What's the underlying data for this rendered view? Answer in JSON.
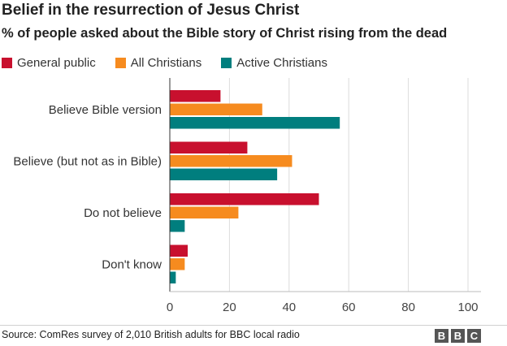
{
  "title": "Belief in the resurrection of Jesus Christ",
  "subtitle": "% of people asked about the Bible story of Christ rising from the dead",
  "source": "Source: ComRes survey of 2,010 British adults for BBC local radio",
  "logo": {
    "letters": [
      "B",
      "B",
      "C"
    ]
  },
  "chart_data": {
    "type": "bar",
    "orientation": "horizontal",
    "title": "Belief in the resurrection of Jesus Christ",
    "categories": [
      "Believe Bible version",
      "Believe (but not as in Bible)",
      "Do not believe",
      "Don't know"
    ],
    "series": [
      {
        "name": "General public",
        "color": "#c8102e",
        "values": [
          17,
          26,
          50,
          6
        ]
      },
      {
        "name": "All Christians",
        "color": "#f68b1f",
        "values": [
          31,
          41,
          23,
          5
        ]
      },
      {
        "name": "Active Christians",
        "color": "#007e7e",
        "values": [
          57,
          36,
          5,
          2
        ]
      }
    ],
    "xlim": [
      0,
      100
    ],
    "xticks": [
      0,
      20,
      40,
      60,
      80,
      100
    ],
    "xlabel": "",
    "ylabel": "",
    "grid": true,
    "legend_position": "top-left"
  }
}
